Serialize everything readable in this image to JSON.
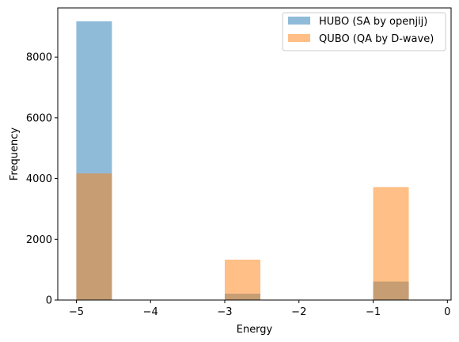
{
  "chart_data": {
    "type": "bar",
    "title": "",
    "xlabel": "Energy",
    "ylabel": "Frequency",
    "xlim": [
      -5.25,
      0.05
    ],
    "ylim": [
      0,
      9620
    ],
    "xticks": [
      -5,
      -4,
      -3,
      -2,
      -1,
      0
    ],
    "xtick_labels": [
      "−5",
      "−4",
      "−3",
      "−2",
      "−1",
      "0"
    ],
    "yticks": [
      0,
      2000,
      4000,
      6000,
      8000
    ],
    "ytick_labels": [
      "0",
      "2000",
      "4000",
      "6000",
      "8000"
    ],
    "grid": false,
    "legend_position": "top-right",
    "bin_edges": [
      -5.0,
      -4.52,
      -4.05,
      -3.57,
      -3.1,
      -2.62,
      -2.15,
      -1.67,
      -1.2,
      -0.72,
      -0.25
    ],
    "series": [
      {
        "name": "HUBO (SA by openjij)",
        "color": "#1f77b4",
        "opacity": 0.5,
        "bins": [
          {
            "x0": -5.0,
            "x1": -4.52,
            "count": 9180
          },
          {
            "x0": -3.0,
            "x1": -2.52,
            "count": 210
          },
          {
            "x0": -1.0,
            "x1": -0.52,
            "count": 610
          }
        ]
      },
      {
        "name": "QUBO (QA by D-wave)",
        "color": "#ff7f0e",
        "opacity": 0.5,
        "bins": [
          {
            "x0": -5.0,
            "x1": -4.52,
            "count": 4170
          },
          {
            "x0": -3.0,
            "x1": -2.52,
            "count": 1330
          },
          {
            "x0": -1.0,
            "x1": -0.52,
            "count": 3720
          }
        ]
      }
    ]
  }
}
